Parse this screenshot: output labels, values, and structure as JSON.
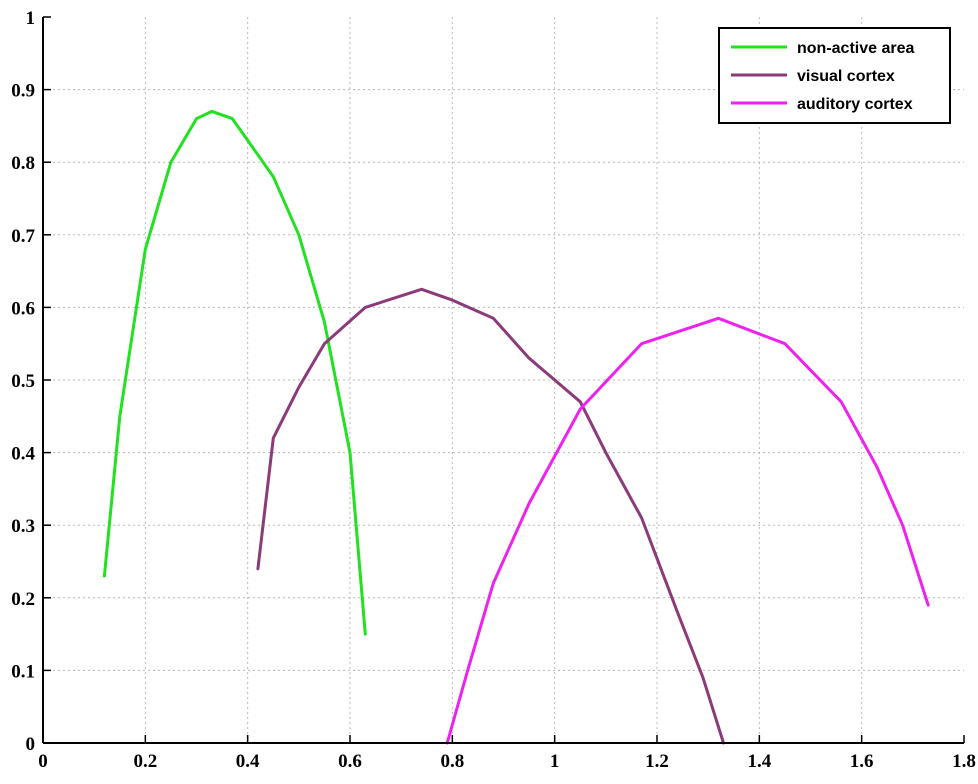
{
  "chart_data": {
    "type": "line",
    "xlim": [
      0,
      1.8
    ],
    "ylim": [
      0,
      1
    ],
    "grid": true,
    "legend_position": "top-right",
    "x_ticks": [
      "0",
      "0.2",
      "0.4",
      "0.6",
      "0.8",
      "1",
      "1.2",
      "1.4",
      "1.6",
      "1.8"
    ],
    "y_ticks": [
      "0",
      "0.1",
      "0.2",
      "0.3",
      "0.4",
      "0.5",
      "0.6",
      "0.7",
      "0.8",
      "0.9",
      "1"
    ],
    "series": [
      {
        "name": "non-active area",
        "color": "#22e022",
        "x": [
          0.12,
          0.15,
          0.2,
          0.25,
          0.3,
          0.33,
          0.37,
          0.4,
          0.45,
          0.5,
          0.55,
          0.6,
          0.63
        ],
        "y": [
          0.23,
          0.45,
          0.68,
          0.8,
          0.86,
          0.87,
          0.86,
          0.83,
          0.78,
          0.7,
          0.58,
          0.4,
          0.15
        ]
      },
      {
        "name": "visual cortex",
        "color": "#8b3a7a",
        "x": [
          0.42,
          0.45,
          0.5,
          0.55,
          0.63,
          0.74,
          0.8,
          0.88,
          0.95,
          1.0,
          1.05,
          1.1,
          1.17,
          1.24,
          1.29,
          1.33
        ],
        "y": [
          0.24,
          0.42,
          0.49,
          0.55,
          0.6,
          0.625,
          0.61,
          0.585,
          0.53,
          0.5,
          0.47,
          0.4,
          0.31,
          0.18,
          0.09,
          0.0
        ]
      },
      {
        "name": "auditory cortex",
        "color": "#ee22ee",
        "x": [
          0.79,
          0.83,
          0.88,
          0.95,
          1.05,
          1.17,
          1.32,
          1.45,
          1.56,
          1.63,
          1.68,
          1.73
        ],
        "y": [
          0.0,
          0.1,
          0.22,
          0.33,
          0.46,
          0.55,
          0.585,
          0.55,
          0.47,
          0.38,
          0.3,
          0.19
        ]
      }
    ]
  }
}
